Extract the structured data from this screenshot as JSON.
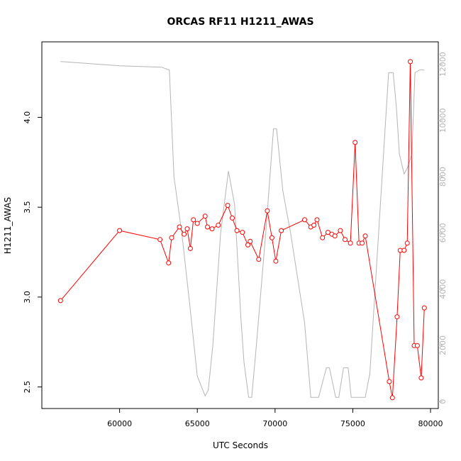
{
  "chart_data": {
    "type": "line",
    "title": "ORCAS RF11 H1211_AWAS",
    "xlabel": "UTC Seconds",
    "ylabel": "H1211_AWAS",
    "xlim": [
      55000,
      80500
    ],
    "ylim": [
      2.38,
      4.42
    ],
    "y2lim": [
      -250,
      12800
    ],
    "x_ticks": [
      60000,
      65000,
      70000,
      75000,
      80000
    ],
    "y_ticks": [
      2.5,
      3.0,
      3.5,
      4.0
    ],
    "y2_ticks": [
      0,
      2000,
      4000,
      6000,
      8000,
      10000,
      12000
    ],
    "series": [
      {
        "axis": "left",
        "color": "#ff0000",
        "x": [
          56200,
          60000,
          62600,
          63150,
          63350,
          63850,
          64150,
          64350,
          64550,
          64750,
          65000,
          65500,
          65650,
          65950,
          66350,
          66950,
          67250,
          67550,
          67900,
          68250,
          68400,
          68950,
          69500,
          69800,
          70050,
          70400,
          71900,
          72300,
          72500,
          72700,
          73050,
          73400,
          73650,
          73850,
          74200,
          74500,
          74850,
          75150,
          75400,
          75600,
          75800,
          77350,
          77550,
          77850,
          78050,
          78300,
          78500,
          78700,
          78950,
          79150,
          79400,
          79600
        ],
        "y": [
          2.98,
          3.37,
          3.32,
          3.19,
          3.33,
          3.39,
          3.35,
          3.38,
          3.27,
          3.43,
          3.41,
          3.45,
          3.39,
          3.38,
          3.4,
          3.51,
          3.44,
          3.37,
          3.36,
          3.29,
          3.31,
          3.21,
          3.48,
          3.33,
          3.2,
          3.37,
          3.43,
          3.39,
          3.4,
          3.43,
          3.33,
          3.36,
          3.35,
          3.34,
          3.37,
          3.32,
          3.3,
          3.86,
          3.3,
          3.3,
          3.34,
          2.53,
          2.44,
          2.89,
          3.26,
          3.26,
          3.3,
          4.31,
          2.73,
          2.73,
          2.55,
          2.94
        ]
      },
      {
        "axis": "right",
        "color": "#b5b5b5",
        "x": [
          56200,
          60000,
          62700,
          63200,
          63500,
          64000,
          64500,
          65000,
          65500,
          65700,
          66000,
          66500,
          67000,
          67400,
          67800,
          68000,
          68300,
          68500,
          68800,
          69400,
          69900,
          70100,
          70500,
          71000,
          71900,
          72300,
          72800,
          73300,
          73500,
          73900,
          74100,
          74400,
          74700,
          74900,
          75200,
          75500,
          75800,
          76100,
          77300,
          77600,
          77800,
          78000,
          78300,
          78500,
          78800,
          79000,
          79300,
          79600
        ],
        "y": [
          12100,
          11950,
          11900,
          11800,
          8000,
          6000,
          3500,
          900,
          200,
          400,
          2000,
          6000,
          8200,
          7000,
          3000,
          1400,
          150,
          150,
          2000,
          6000,
          9700,
          9700,
          7500,
          6000,
          2800,
          150,
          150,
          1200,
          1200,
          150,
          150,
          1200,
          1200,
          150,
          150,
          150,
          150,
          1000,
          11700,
          11700,
          10500,
          8800,
          8100,
          8300,
          8800,
          11700,
          11800,
          11800
        ]
      }
    ]
  }
}
